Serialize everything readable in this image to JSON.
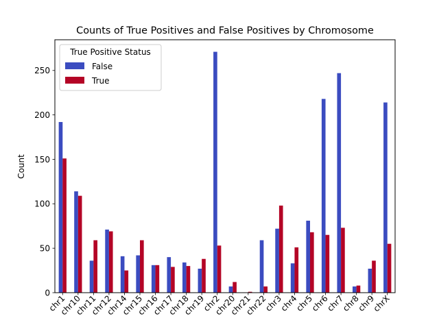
{
  "chart_data": {
    "type": "bar",
    "title": "Counts of True Positives and False Positives by Chromosome",
    "xlabel": "",
    "ylabel": "Count",
    "ylim": [
      0,
      284.55
    ],
    "yticks": [
      0,
      50,
      100,
      150,
      200,
      250
    ],
    "grid": false,
    "legend": {
      "title": "True Positive Status",
      "placement": "top-left"
    },
    "categories": [
      "chr1",
      "chr10",
      "chr11",
      "chr12",
      "chr14",
      "chr15",
      "chr16",
      "chr17",
      "chr18",
      "chr19",
      "chr2",
      "chr20",
      "chr21",
      "chr22",
      "chr3",
      "chr4",
      "chr5",
      "chr6",
      "chr7",
      "chr8",
      "chr9",
      "chrX"
    ],
    "series": [
      {
        "name": "False",
        "color": "#3b4cc0",
        "values": [
          192,
          114,
          36,
          71,
          41,
          42,
          31,
          40,
          34,
          27,
          271,
          7,
          0,
          59,
          72,
          33,
          81,
          218,
          247,
          7,
          27,
          214
        ]
      },
      {
        "name": "True",
        "color": "#b40426",
        "values": [
          151,
          109,
          59,
          69,
          25,
          59,
          31,
          29,
          30,
          38,
          53,
          12,
          1,
          7,
          98,
          51,
          68,
          65,
          73,
          8,
          36,
          55
        ]
      }
    ]
  }
}
